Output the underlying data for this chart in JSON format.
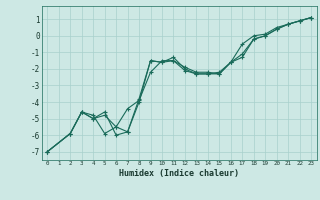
{
  "xlabel": "Humidex (Indice chaleur)",
  "xlim": [
    -0.5,
    23.5
  ],
  "ylim": [
    -7.5,
    1.8
  ],
  "yticks": [
    1,
    0,
    -1,
    -2,
    -3,
    -4,
    -5,
    -6,
    -7
  ],
  "xticks": [
    0,
    1,
    2,
    3,
    4,
    5,
    6,
    7,
    8,
    9,
    10,
    11,
    12,
    13,
    14,
    15,
    16,
    17,
    18,
    19,
    20,
    21,
    22,
    23
  ],
  "bg_color": "#cde8e4",
  "grid_color": "#a8d0cc",
  "line_color": "#1a6b5a",
  "series": [
    {
      "x": [
        0,
        2,
        3,
        4,
        5,
        6,
        7,
        8,
        9,
        10,
        11,
        12,
        13,
        14,
        15,
        16,
        17,
        18,
        19,
        20,
        21,
        22,
        23
      ],
      "y": [
        -7.0,
        -5.9,
        -4.6,
        -4.8,
        -5.9,
        -5.5,
        -5.8,
        -4.0,
        -1.5,
        -1.6,
        -1.3,
        -2.0,
        -2.3,
        -2.3,
        -2.2,
        -1.6,
        -1.3,
        -0.2,
        0.0,
        0.4,
        0.7,
        0.9,
        1.1
      ]
    },
    {
      "x": [
        0,
        2,
        3,
        4,
        5,
        6,
        7,
        8,
        9,
        10,
        11,
        12,
        13,
        14,
        15,
        16,
        17,
        18,
        19,
        20,
        21,
        22,
        23
      ],
      "y": [
        -7.0,
        -5.9,
        -4.6,
        -5.0,
        -4.8,
        -5.5,
        -4.4,
        -3.9,
        -2.2,
        -1.5,
        -1.5,
        -1.9,
        -2.2,
        -2.2,
        -2.3,
        -1.6,
        -1.1,
        -0.2,
        0.0,
        0.4,
        0.7,
        0.9,
        1.1
      ]
    },
    {
      "x": [
        0,
        2,
        3,
        4,
        5,
        6,
        7,
        8,
        9,
        10,
        11,
        12,
        13,
        14,
        15,
        16,
        17,
        18,
        19,
        20,
        21,
        22,
        23
      ],
      "y": [
        -7.0,
        -5.9,
        -4.6,
        -5.0,
        -4.6,
        -6.0,
        -5.8,
        -3.8,
        -1.5,
        -1.6,
        -1.5,
        -2.1,
        -2.3,
        -2.3,
        -2.3,
        -1.6,
        -0.5,
        0.0,
        0.1,
        0.5,
        0.7,
        0.9,
        1.1
      ]
    }
  ]
}
